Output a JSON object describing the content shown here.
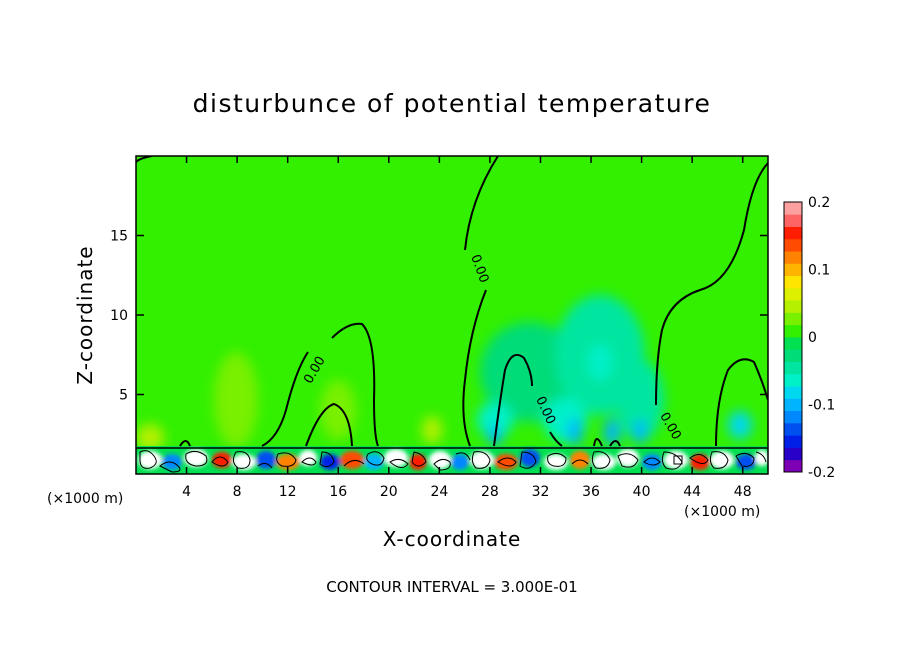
{
  "chart_data": {
    "type": "heatmap",
    "title": "disturbunce of potential temperature",
    "xlabel": "X-coordinate",
    "ylabel": "Z-coordinate",
    "x_unit": "(×1000 m)",
    "y_unit": "(×1000 m)",
    "x_ticks": [
      4,
      8,
      12,
      16,
      20,
      24,
      28,
      32,
      36,
      40,
      44,
      48
    ],
    "y_ticks": [
      5,
      10,
      15
    ],
    "xlim": [
      0,
      50
    ],
    "ylim": [
      0,
      20
    ],
    "contour_interval_text": "CONTOUR INTERVAL = 3.000E-01",
    "contour_labels": [
      {
        "text": "0.00",
        "x": 14.5,
        "y": 7.7
      },
      {
        "text": "0.00",
        "x": 26.8,
        "y": 12.5
      },
      {
        "text": "0.00",
        "x": 31.9,
        "y": 4.1
      },
      {
        "text": "0.00",
        "x": 41.8,
        "y": 2.9
      }
    ],
    "colorbar": {
      "min": -0.2,
      "max": 0.2,
      "tick_labels": [
        "0.2",
        "0.1",
        "0",
        "-0.1",
        "-0.2"
      ],
      "tick_values": [
        0.2,
        0.1,
        0,
        -0.1,
        -0.2
      ],
      "colors": [
        "#7d00b4",
        "#2800c8",
        "#0020e8",
        "#0050f0",
        "#0088ff",
        "#00b4ff",
        "#00d8f0",
        "#00f0c8",
        "#00e6a0",
        "#00dc78",
        "#00e050",
        "#32f000",
        "#78f000",
        "#b4f000",
        "#dcf000",
        "#ffe600",
        "#ffb400",
        "#ff8200",
        "#ff4b00",
        "#ff1e00",
        "#ff6464",
        "#ffa0a0"
      ]
    }
  }
}
